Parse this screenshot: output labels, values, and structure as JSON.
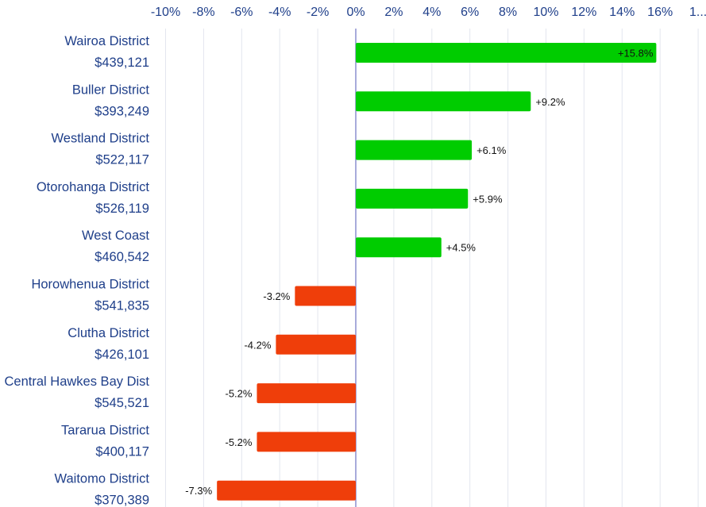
{
  "chart_data": {
    "type": "bar",
    "orientation": "horizontal",
    "title": "",
    "xlabel": "",
    "ylabel": "",
    "xlim": [
      -10,
      18
    ],
    "x_ticks": [
      "-10%",
      "-8%",
      "-6%",
      "-4%",
      "-2%",
      "0%",
      "2%",
      "4%",
      "6%",
      "8%",
      "10%",
      "12%",
      "14%",
      "16%",
      "1..."
    ],
    "grid": "vertical",
    "legend": "none",
    "colors": {
      "positive": "#00cc00",
      "negative": "#ef3e0a",
      "zero_line": "#8c8fcf",
      "grid": "#e3e6ee",
      "label_text": "#1f3f8a"
    },
    "categories": [
      {
        "name": "Wairoa District",
        "value_text": "$439,121",
        "change": 15.8,
        "label": "+15.8%"
      },
      {
        "name": "Buller District",
        "value_text": "$393,249",
        "change": 9.2,
        "label": "+9.2%"
      },
      {
        "name": "Westland District",
        "value_text": "$522,117",
        "change": 6.1,
        "label": "+6.1%"
      },
      {
        "name": "Otorohanga District",
        "value_text": "$526,119",
        "change": 5.9,
        "label": "+5.9%"
      },
      {
        "name": "West Coast",
        "value_text": "$460,542",
        "change": 4.5,
        "label": "+4.5%"
      },
      {
        "name": "Horowhenua District",
        "value_text": "$541,835",
        "change": -3.2,
        "label": "-3.2%"
      },
      {
        "name": "Clutha District",
        "value_text": "$426,101",
        "change": -4.2,
        "label": "-4.2%"
      },
      {
        "name": "Central Hawkes Bay Dist",
        "value_text": "$545,521",
        "change": -5.2,
        "label": "-5.2%"
      },
      {
        "name": "Tararua District",
        "value_text": "$400,117",
        "change": -5.2,
        "label": "-5.2%"
      },
      {
        "name": "Waitomo District",
        "value_text": "$370,389",
        "change": -7.3,
        "label": "-7.3%"
      }
    ]
  }
}
